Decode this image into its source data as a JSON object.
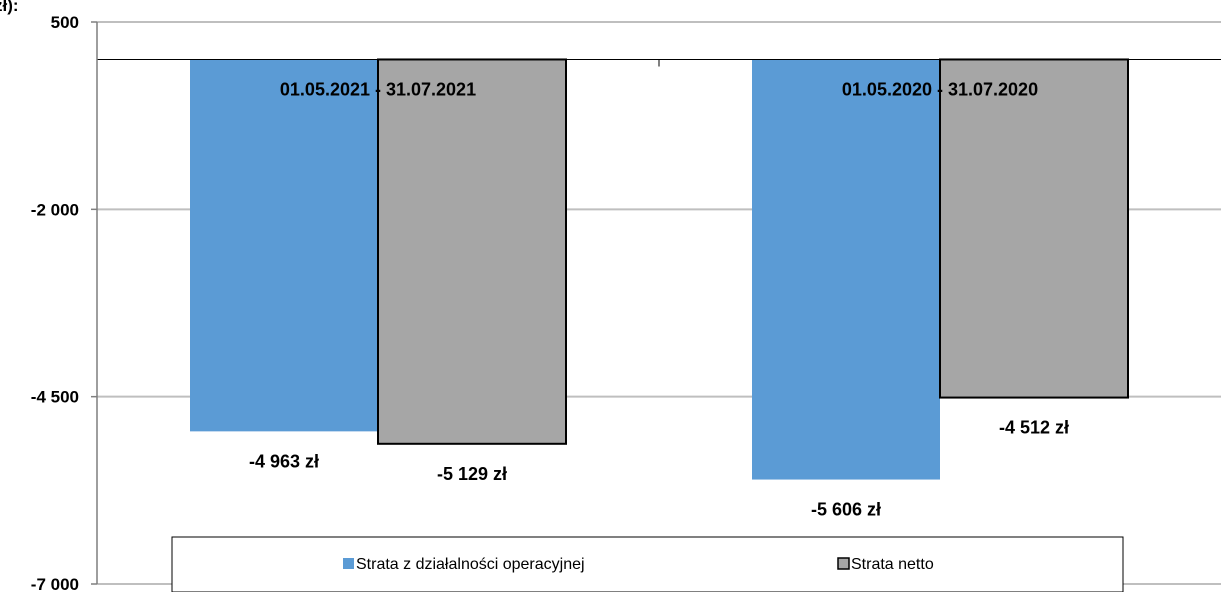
{
  "chart_data": {
    "type": "bar",
    "categories": [
      "01.05.2021 - 31.07.2021",
      "01.05.2020 - 31.07.2020"
    ],
    "series": [
      {
        "name": "Strata z działalności operacyjnej",
        "values": [
          -4963,
          -5606
        ],
        "labels": [
          "-4 963 zł",
          "-5 606 zł"
        ],
        "color": "#5B9BD5"
      },
      {
        "name": "Strata netto",
        "values": [
          -5129,
          -4512
        ],
        "labels": [
          "-5 129 zł",
          "-4 512 zł"
        ],
        "color": "#A6A6A6"
      }
    ],
    "ylim": [
      -7000,
      500
    ],
    "yticks": [
      500,
      -2000,
      -4500,
      -7000
    ],
    "ytick_labels": [
      "500",
      "-2 000",
      "-4 500",
      "-7 000"
    ],
    "grid": true,
    "legend_position": "bottom",
    "clipped_top_text": "zł):",
    "title": "",
    "xlabel": "",
    "ylabel": ""
  }
}
